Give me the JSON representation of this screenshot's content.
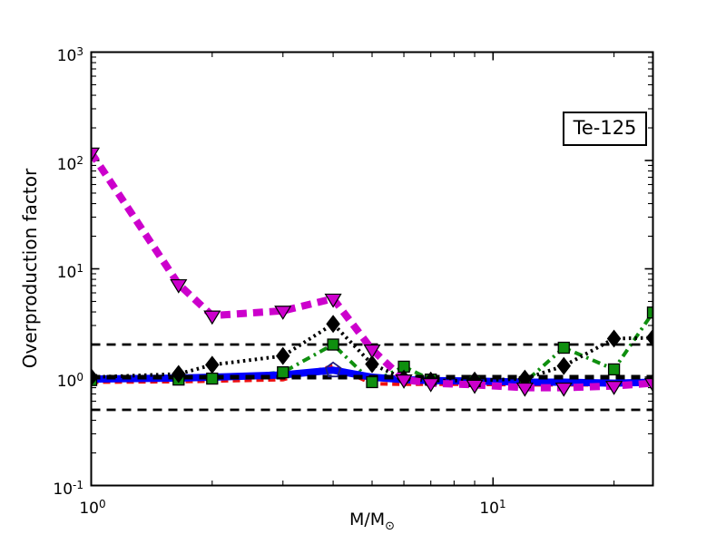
{
  "figure": {
    "background": "#ffffff",
    "annotation_label": "Te-125",
    "ylabel": "Overproduction factor",
    "xlabel_main": "M/M",
    "xlabel_sub": "⊙"
  },
  "axes": {
    "y_ticks": [
      {
        "base": "10",
        "exp": "3"
      },
      {
        "base": "10",
        "exp": "2"
      },
      {
        "base": "10",
        "exp": "1"
      },
      {
        "base": "10",
        "exp": "0"
      },
      {
        "base": "10",
        "exp": "-1"
      }
    ],
    "x_ticks": [
      {
        "base": "10",
        "exp": "0"
      },
      {
        "base": "10",
        "exp": "1"
      }
    ]
  },
  "chart_data": {
    "type": "line",
    "title": "Te-125",
    "xlabel": "M/M_sun (initial stellar mass)",
    "ylabel": "Overproduction factor",
    "xscale": "log",
    "yscale": "log",
    "xlim": [
      1,
      25
    ],
    "ylim": [
      0.1,
      1000
    ],
    "grid": false,
    "legend": "none",
    "x": [
      1,
      1.65,
      2,
      3,
      4,
      5,
      6,
      7,
      9,
      12,
      15,
      20,
      25
    ],
    "series": [
      {
        "name": "red dashed line",
        "color": "#ee1111",
        "dash": "8 5",
        "width": 4,
        "marker": "none",
        "values": [
          0.9,
          0.91,
          0.92,
          0.95,
          1.27,
          0.87,
          0.86,
          0.86,
          0.86,
          0.85,
          0.85,
          0.85,
          0.88
        ]
      },
      {
        "name": "green dash-dot line with squares",
        "color": "#0f8f0f",
        "dash": "9 5 2.5 5",
        "width": 4,
        "marker": "square",
        "values": [
          0.94,
          0.95,
          0.97,
          1.11,
          2.0,
          0.9,
          1.25,
          0.95,
          0.92,
          0.9,
          1.87,
          1.18,
          3.95
        ]
      },
      {
        "name": "blue thick solid line with open pentagon",
        "color": "#0000ff",
        "dash": "",
        "width": 8,
        "marker": "pentagon-open",
        "marker_x": [
          4
        ],
        "values": [
          0.96,
          0.98,
          1.0,
          1.05,
          1.16,
          1.0,
          0.95,
          0.93,
          0.92,
          0.9,
          0.9,
          0.88,
          0.9
        ]
      },
      {
        "name": "black dotted line with diamonds",
        "color": "#000000",
        "dash": "2.5 4",
        "width": 4,
        "marker": "diamond",
        "values": [
          1.0,
          1.07,
          1.3,
          1.57,
          3.1,
          1.32,
          0.97,
          0.93,
          0.93,
          0.97,
          1.27,
          2.27,
          2.31
        ]
      },
      {
        "name": "magenta thick dashed line with down-triangles",
        "color": "#cc00cc",
        "dash": "11 7",
        "width": 8,
        "marker": "triangle-down",
        "values": [
          118,
          7.2,
          3.7,
          4.1,
          5.3,
          1.8,
          0.95,
          0.88,
          0.85,
          0.8,
          0.8,
          0.83,
          0.88
        ]
      }
    ],
    "reference_lines": [
      {
        "value": 2,
        "width": 2.8,
        "dash": "10 7",
        "color": "#000000"
      },
      {
        "value": 0.5,
        "width": 2.8,
        "dash": "10 7",
        "color": "#000000"
      },
      {
        "value": 1,
        "width": 5,
        "dash": "10 7",
        "color": "#000000"
      }
    ]
  }
}
